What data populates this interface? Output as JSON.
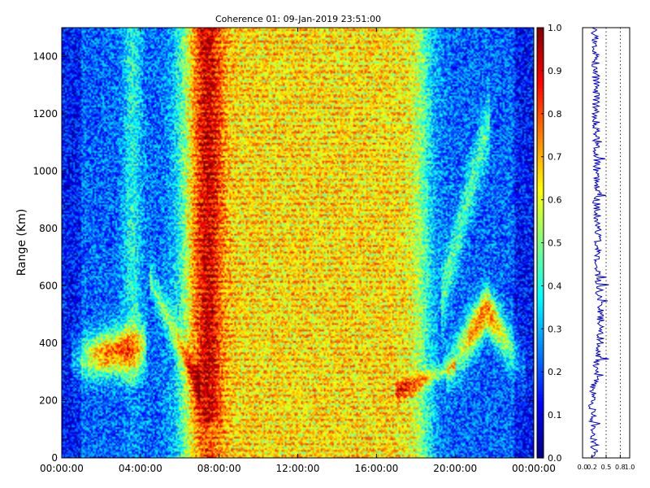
{
  "chart_data": [
    {
      "type": "heatmap",
      "title": "Coherence 01: 09-Jan-2019 23:51:00",
      "xlabel": "",
      "ylabel": "Range (Km)",
      "x_range_hours": [
        0,
        24
      ],
      "x_tick_labels": [
        "00:00:00",
        "04:00:00",
        "08:00:00",
        "12:00:00",
        "16:00:00",
        "20:00:00",
        "00:00:00"
      ],
      "x_tick_hours": [
        0,
        4,
        8,
        12,
        16,
        20,
        24
      ],
      "ylim": [
        0,
        1500
      ],
      "y_ticks": [
        0,
        200,
        400,
        600,
        800,
        1000,
        1200,
        1400
      ],
      "grid": false,
      "colorbar": {
        "colormap": "jet",
        "range": [
          0.0,
          1.0
        ],
        "tick_values": [
          0.0,
          0.1,
          0.2,
          0.3,
          0.4,
          0.5,
          0.6,
          0.7,
          0.8,
          0.9,
          1.0
        ],
        "tick_labels": [
          "0.0",
          "0.1",
          "0.2",
          "0.3",
          "0.4",
          "0.5",
          "0.6",
          "0.7",
          "0.8",
          "0.9",
          "1.0"
        ]
      },
      "features": [
        {
          "hours": [
            0.5,
            4.0
          ],
          "range_km": [
            280,
            450
          ],
          "coherence": 0.95
        },
        {
          "hours": [
            6.0,
            8.0
          ],
          "range_km": [
            0,
            1500
          ],
          "coherence": 0.85
        },
        {
          "hours": [
            6.0,
            17.0
          ],
          "range_km": [
            200,
            1500
          ],
          "coherence": 0.65
        },
        {
          "hours": [
            20.0,
            23.5
          ],
          "range_km": [
            300,
            600
          ],
          "coherence": 0.9
        }
      ]
    },
    {
      "type": "line",
      "title": "",
      "xlabel": "",
      "ylabel": "",
      "xlim": [
        0.0,
        1.0
      ],
      "ylim": [
        0,
        1500
      ],
      "x_tick_labels": [
        "0.0",
        "0.2",
        "0.5",
        "0.8",
        "1.0"
      ],
      "x_tick_values": [
        0.0,
        0.2,
        0.5,
        0.8,
        1.0
      ],
      "dotted_reference_lines": [
        0.5,
        0.8
      ],
      "series": [
        {
          "color": "#0000cc",
          "profile": [
            {
              "range_km": 0,
              "value": 0.25
            },
            {
              "range_km": 100,
              "value": 0.22
            },
            {
              "range_km": 200,
              "value": 0.2
            },
            {
              "range_km": 300,
              "value": 0.28
            },
            {
              "range_km": 400,
              "value": 0.38
            },
            {
              "range_km": 500,
              "value": 0.38
            },
            {
              "range_km": 600,
              "value": 0.35
            },
            {
              "range_km": 700,
              "value": 0.33
            },
            {
              "range_km": 800,
              "value": 0.32
            },
            {
              "range_km": 900,
              "value": 0.3
            },
            {
              "range_km": 1000,
              "value": 0.3
            },
            {
              "range_km": 1100,
              "value": 0.3
            },
            {
              "range_km": 1200,
              "value": 0.28
            },
            {
              "range_km": 1300,
              "value": 0.28
            },
            {
              "range_km": 1400,
              "value": 0.28
            },
            {
              "range_km": 1500,
              "value": 0.25
            }
          ]
        }
      ]
    }
  ]
}
